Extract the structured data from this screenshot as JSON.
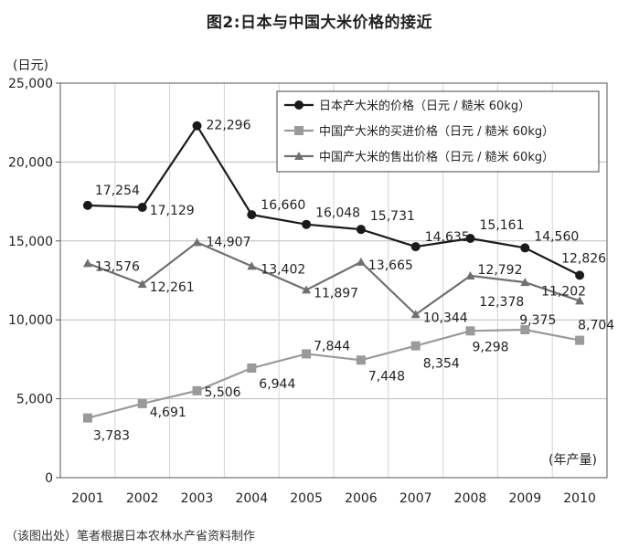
{
  "chart_data": {
    "type": "line",
    "title": "图2:日本与中国大米价格的接近",
    "ylabel": "(日元)",
    "xlabel": "(年产量)",
    "ylim": [
      0,
      25000
    ],
    "yticks": [
      0,
      5000,
      10000,
      15000,
      20000,
      25000
    ],
    "ytick_labels": [
      "0",
      "5,000",
      "10,000",
      "15,000",
      "20,000",
      "25,000"
    ],
    "categories": [
      "2001",
      "2002",
      "2003",
      "2004",
      "2005",
      "2006",
      "2007",
      "2008",
      "2009",
      "2010"
    ],
    "grid": true,
    "legend_position": "top-right",
    "series": [
      {
        "name": "日本产大米的价格（日元 / 糙米 60kg）",
        "marker": "circle",
        "color": "#1a1a1a",
        "values": [
          17254,
          17129,
          22296,
          16660,
          16048,
          15731,
          14635,
          15161,
          14560,
          12826
        ],
        "labels": [
          "17,254",
          "17,129",
          "22,296",
          "16,660",
          "16,048",
          "15,731",
          "14,635",
          "15,161",
          "14,560",
          "12,826"
        ]
      },
      {
        "name": "中国产大米的买进价格（日元 / 糙米 60kg）",
        "marker": "square",
        "color": "#9a9a9a",
        "values": [
          3783,
          4691,
          5506,
          6944,
          7844,
          7448,
          8354,
          9298,
          9375,
          8704
        ],
        "labels": [
          "3,783",
          "4,691",
          "5,506",
          "6,944",
          "7,844",
          "7,448",
          "8,354",
          "9,298",
          "9,375",
          "8,704"
        ]
      },
      {
        "name": "中国产大米的售出价格（日元 / 糙米 60kg）",
        "marker": "triangle",
        "color": "#707070",
        "values": [
          13576,
          12261,
          14907,
          13402,
          11897,
          13665,
          10344,
          12792,
          12378,
          11202
        ],
        "labels": [
          "13,576",
          "12,261",
          "14,907",
          "13,402",
          "11,897",
          "13,665",
          "10,344",
          "12,792",
          "12,378",
          "11,202"
        ]
      }
    ]
  },
  "source_note": "（该图出处）笔者根据日本农林水产省资料制作"
}
